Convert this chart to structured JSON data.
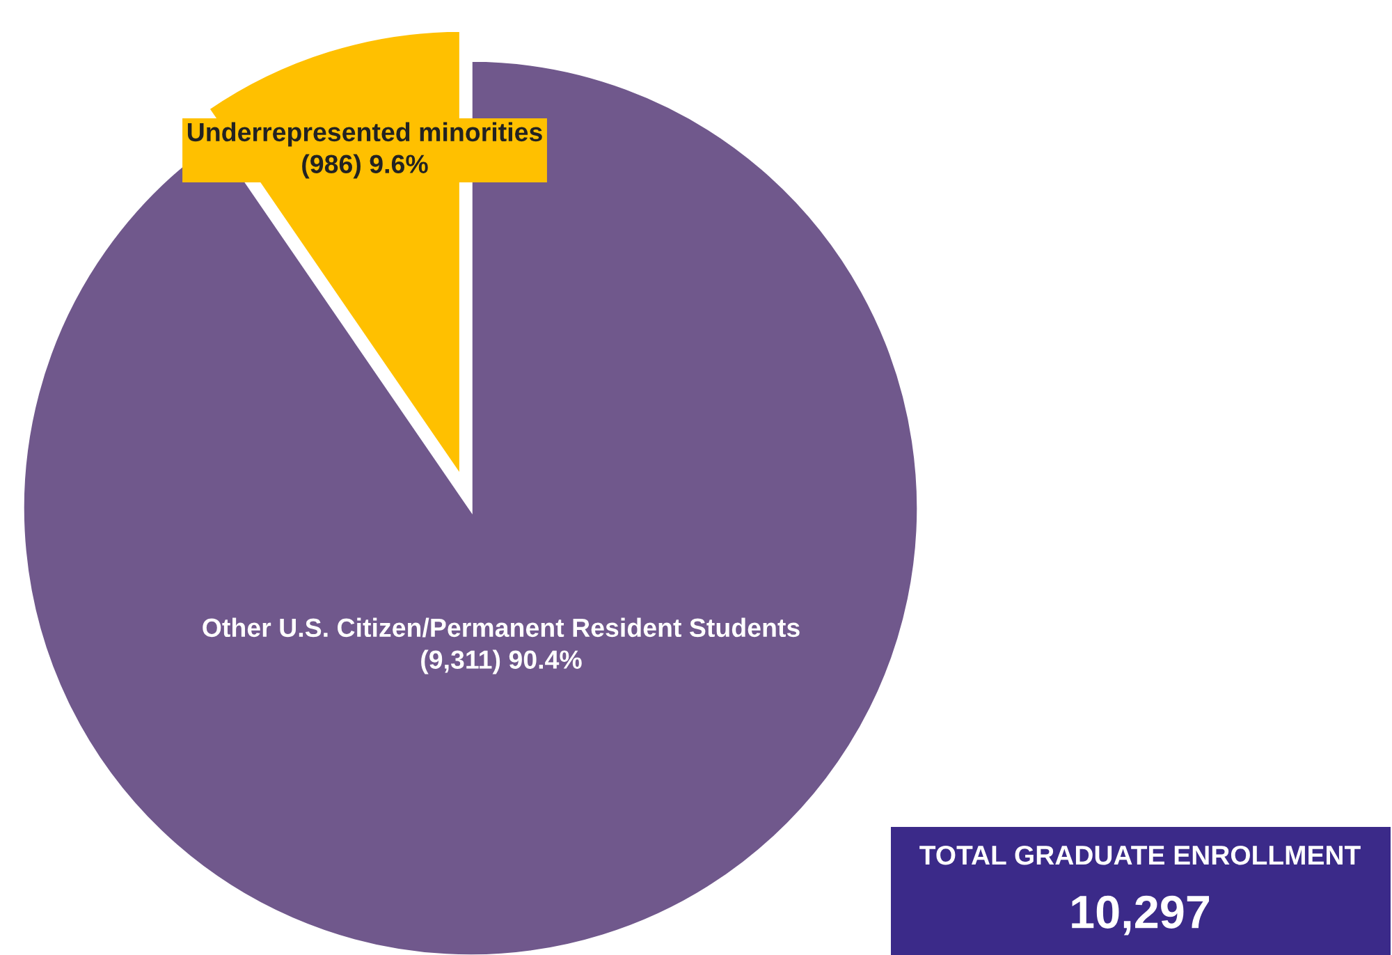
{
  "chart_data": {
    "type": "pie",
    "categories": [
      "Underrepresented minorities",
      "Other U.S. Citizen/Permanent Resident Students"
    ],
    "values": [
      986,
      9311
    ],
    "colors": [
      "#ffc000",
      "#70588c"
    ],
    "value_labels": [
      "(986) 9.6%",
      "(9,311) 90.4%"
    ],
    "legend": false,
    "annotations": [
      "TOTAL GRADUATE ENROLLMENT",
      "10,297"
    ]
  }
}
